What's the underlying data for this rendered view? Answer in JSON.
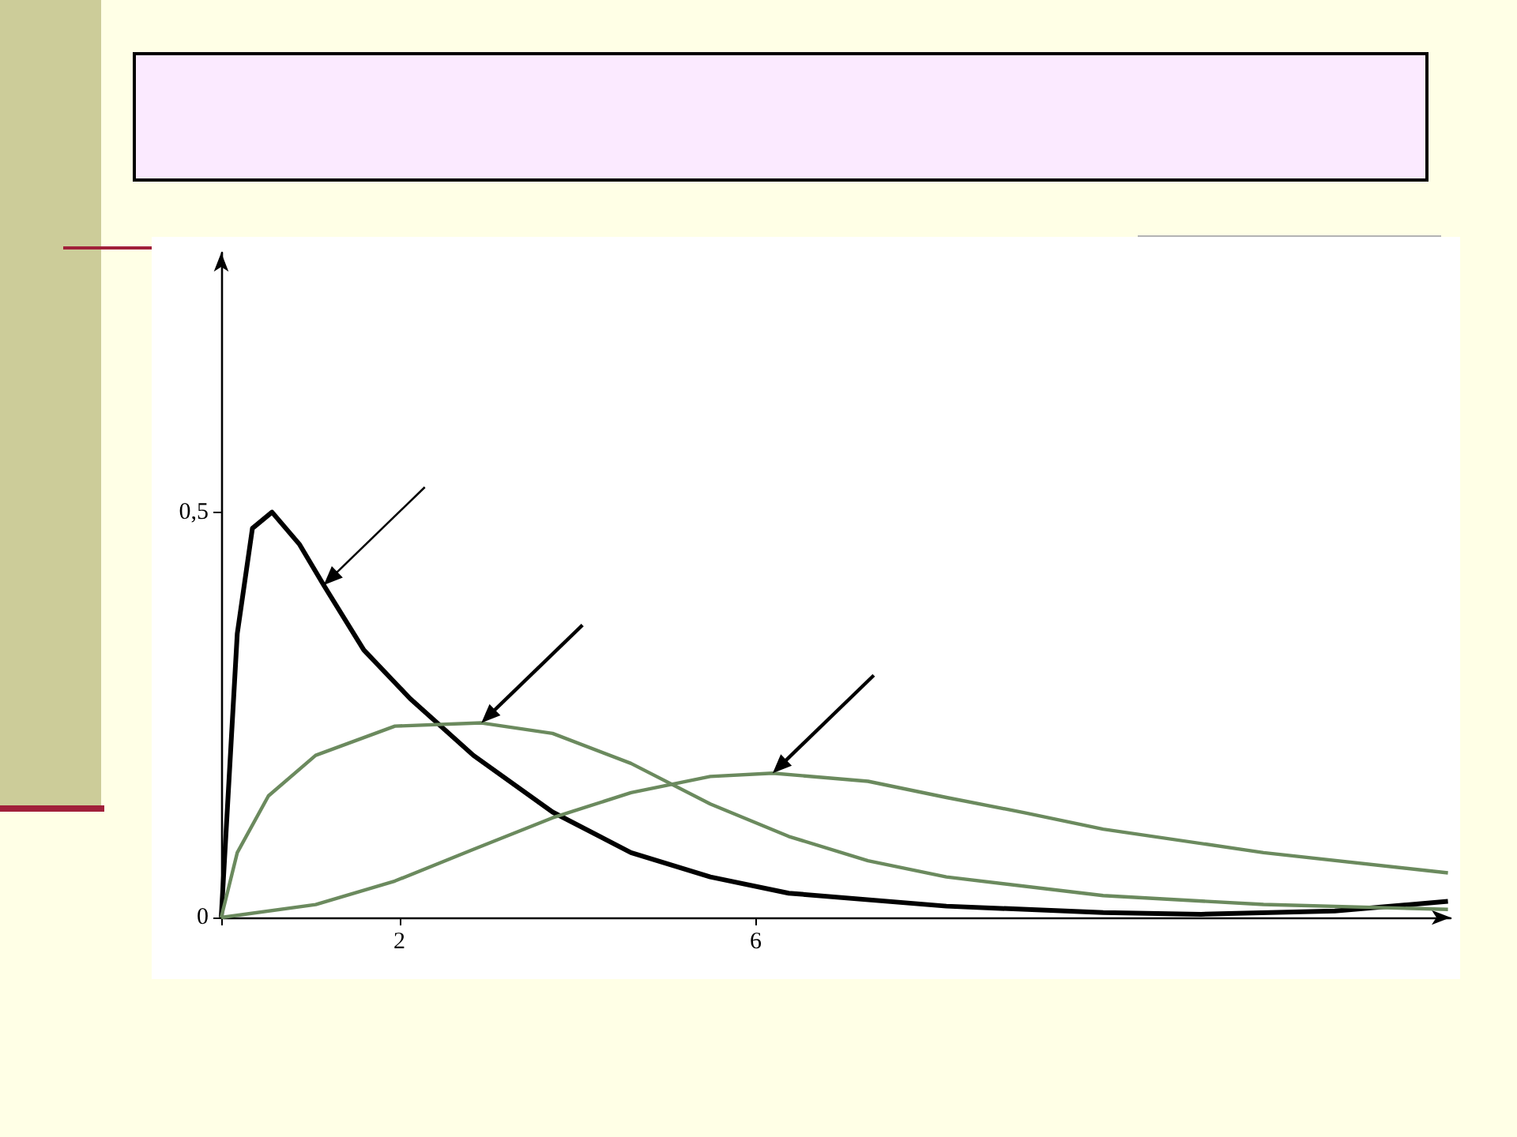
{
  "chart_data": {
    "type": "line",
    "xlim": [
      0,
      13.8
    ],
    "ylim": [
      0,
      0.82
    ],
    "xticks": [
      {
        "value": 0,
        "label": null
      },
      2,
      6
    ],
    "yticks": [
      0,
      {
        "value": 0.5,
        "label": "0,5"
      }
    ],
    "grid": false,
    "marker": "none",
    "line_style": "solid",
    "series": [
      {
        "color": "#000000",
        "x": [
          0,
          0.18,
          0.35,
          0.57,
          0.88,
          1.15,
          1.6,
          2.12,
          2.83,
          3.72,
          4.6,
          5.49,
          6.37,
          8.14,
          9.9,
          11,
          12.5,
          13.77
        ],
        "values": [
          0,
          0.35,
          0.48,
          0.5,
          0.46,
          0.41,
          0.33,
          0.27,
          0.2,
          0.13,
          0.08,
          0.05,
          0.03,
          0.014,
          0.006,
          0.004,
          0.008,
          0.02
        ]
      },
      {
        "color": "#6b8a5e",
        "x": [
          0,
          0.18,
          0.53,
          1.06,
          1.95,
          2.92,
          3.72,
          4.6,
          5.49,
          6.37,
          7.26,
          8.14,
          9.9,
          11.7,
          13.77
        ],
        "values": [
          0,
          0.08,
          0.15,
          0.2,
          0.236,
          0.24,
          0.227,
          0.19,
          0.14,
          0.1,
          0.07,
          0.05,
          0.027,
          0.016,
          0.01
        ]
      },
      {
        "color": "#6b8a5e",
        "x": [
          0,
          1.06,
          1.95,
          2.83,
          3.72,
          4.6,
          5.49,
          6.19,
          7.26,
          8.14,
          9.03,
          9.9,
          11.7,
          13.77
        ],
        "values": [
          0,
          0.016,
          0.045,
          0.084,
          0.123,
          0.154,
          0.174,
          0.178,
          0.168,
          0.148,
          0.129,
          0.109,
          0.08,
          0.055
        ]
      }
    ]
  }
}
